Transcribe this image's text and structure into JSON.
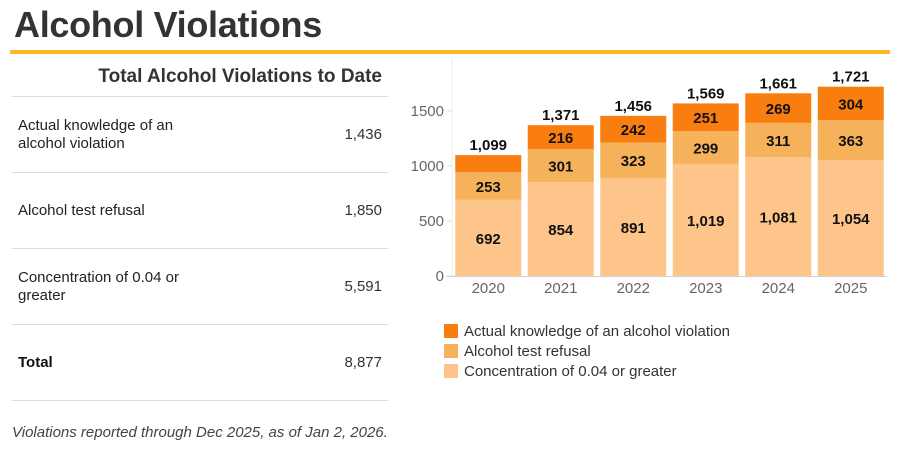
{
  "header": {
    "title": "Alcohol Violations"
  },
  "summary": {
    "title": "Total Alcohol Violations to Date",
    "rows": [
      {
        "label": "Actual knowledge of an alcohol violation",
        "value": "1,436"
      },
      {
        "label": "Alcohol test refusal",
        "value": "1,850"
      },
      {
        "label": "Concentration of 0.04 or greater",
        "value": "5,591"
      }
    ],
    "total": {
      "label": "Total",
      "value": "8,877"
    }
  },
  "footnote": "Violations reported through Dec 2025, as of Jan 2, 2026.",
  "colors": {
    "accent_rule": "#fbb829",
    "actual_knowledge": "#fa7d0f",
    "test_refusal": "#f6b25a",
    "concentration": "#fdc58a"
  },
  "chart_data": {
    "type": "bar",
    "stacked": true,
    "title": "",
    "xlabel": "",
    "ylabel": "",
    "categories": [
      "2020",
      "2021",
      "2022",
      "2023",
      "2024",
      "2025"
    ],
    "ylim": [
      0,
      1900
    ],
    "yticks": [
      0,
      500,
      1000,
      1500
    ],
    "grid": false,
    "legend_position": "bottom-left",
    "series": [
      {
        "name": "Concentration of 0.04 or greater",
        "color": "#fdc58a",
        "values": [
          692,
          854,
          891,
          1019,
          1081,
          1054
        ],
        "labels": [
          "692",
          "854",
          "891",
          "1,019",
          "1,081",
          "1,054"
        ]
      },
      {
        "name": "Alcohol test refusal",
        "color": "#f6b25a",
        "values": [
          253,
          301,
          323,
          299,
          311,
          363
        ],
        "labels": [
          "253",
          "301",
          "323",
          "299",
          "311",
          "363"
        ]
      },
      {
        "name": "Actual knowledge of an alcohol violation",
        "color": "#fa7d0f",
        "values": [
          154,
          216,
          242,
          251,
          269,
          304
        ],
        "labels": [
          "",
          "216",
          "242",
          "251",
          "269",
          "304"
        ]
      }
    ],
    "totals": [
      1099,
      1371,
      1456,
      1569,
      1661,
      1721
    ],
    "total_labels": [
      "1,099",
      "1,371",
      "1,456",
      "1,569",
      "1,661",
      "1,721"
    ],
    "legend": [
      {
        "name": "Actual knowledge of an alcohol violation",
        "color": "#fa7d0f"
      },
      {
        "name": "Alcohol test refusal",
        "color": "#f6b25a"
      },
      {
        "name": "Concentration of 0.04 or greater",
        "color": "#fdc58a"
      }
    ]
  }
}
